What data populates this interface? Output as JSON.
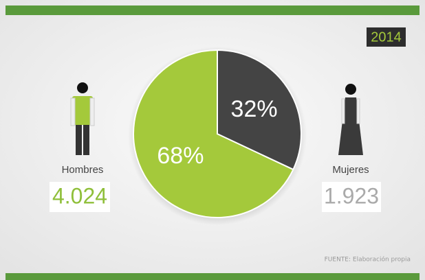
{
  "chart_data": {
    "type": "pie",
    "year": "2014",
    "categories": [
      "Hombres",
      "Mujeres"
    ],
    "values": [
      68,
      32
    ],
    "value_labels": [
      "68%",
      "32%"
    ],
    "colors": [
      "#a4c93b",
      "#444444"
    ],
    "totals": [
      "4.024",
      "1.923"
    ],
    "source": "FUENTE: Elaboración propia"
  }
}
